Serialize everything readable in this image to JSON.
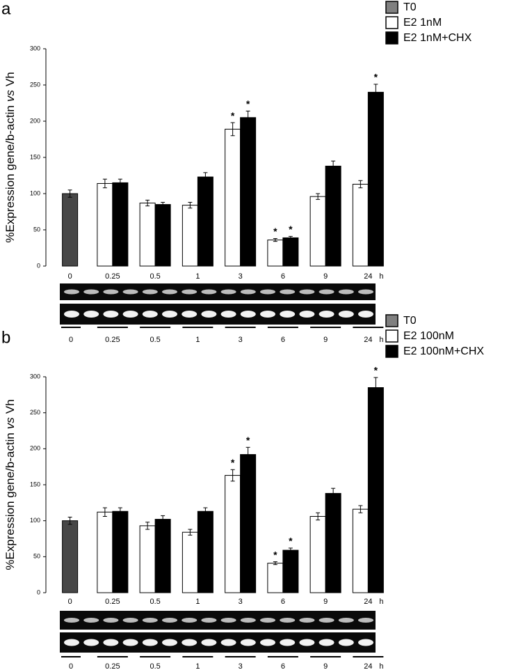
{
  "chart_data": [
    {
      "type": "bar",
      "panel": "a",
      "ylabel": [
        "%Expression gene/b-actin",
        "vs",
        "Vh"
      ],
      "categories": [
        "0",
        "0.25",
        "0.5",
        "1",
        "3",
        "6",
        "9",
        "24"
      ],
      "x_unit": "h",
      "ylim": [
        0,
        300
      ],
      "yticks": [
        0,
        50,
        100,
        150,
        200,
        250,
        300
      ],
      "series": [
        {
          "name": "T0",
          "color": "#474747",
          "legend_color": "#808080",
          "values": [
            100,
            null,
            null,
            null,
            null,
            null,
            null,
            null
          ],
          "errors": [
            5,
            null,
            null,
            null,
            null,
            null,
            null,
            null
          ],
          "significance": [
            null,
            null,
            null,
            null,
            null,
            null,
            null,
            null
          ]
        },
        {
          "name": "E2 1nM",
          "color": "#ffffff",
          "values": [
            null,
            114,
            87,
            84,
            189,
            36,
            96,
            113
          ],
          "errors": [
            null,
            6,
            4,
            4,
            9,
            2,
            4,
            5
          ],
          "significance": [
            null,
            null,
            null,
            null,
            "*",
            "*",
            null,
            null
          ]
        },
        {
          "name": "E2 1nM+CHX",
          "color": "#000000",
          "values": [
            null,
            115,
            85,
            123,
            205,
            39,
            138,
            240
          ],
          "errors": [
            null,
            5,
            3,
            6,
            9,
            2,
            7,
            11
          ],
          "significance": [
            null,
            null,
            null,
            null,
            "*",
            "*",
            null,
            "*"
          ]
        }
      ]
    },
    {
      "type": "bar",
      "panel": "b",
      "ylabel": [
        "%Expression gene/b-actin",
        "vs",
        "Vh"
      ],
      "categories": [
        "0",
        "0.25",
        "0.5",
        "1",
        "3",
        "6",
        "9",
        "24"
      ],
      "x_unit": "h",
      "ylim": [
        0,
        300
      ],
      "yticks": [
        0,
        50,
        100,
        150,
        200,
        250,
        300
      ],
      "series": [
        {
          "name": "T0",
          "color": "#474747",
          "legend_color": "#808080",
          "values": [
            100,
            null,
            null,
            null,
            null,
            null,
            null,
            null
          ],
          "errors": [
            5,
            null,
            null,
            null,
            null,
            null,
            null,
            null
          ],
          "significance": [
            null,
            null,
            null,
            null,
            null,
            null,
            null,
            null
          ]
        },
        {
          "name": "E2 100nM",
          "color": "#ffffff",
          "values": [
            null,
            112,
            93,
            84,
            163,
            41,
            106,
            116
          ],
          "errors": [
            null,
            6,
            5,
            4,
            8,
            2,
            5,
            5
          ],
          "significance": [
            null,
            null,
            null,
            null,
            "*",
            "*",
            null,
            null
          ]
        },
        {
          "name": "E2 100nM+CHX",
          "color": "#000000",
          "values": [
            null,
            113,
            102,
            113,
            192,
            59,
            138,
            285
          ],
          "errors": [
            null,
            5,
            5,
            5,
            10,
            3,
            7,
            14
          ],
          "significance": [
            null,
            null,
            null,
            null,
            "*",
            "*",
            null,
            "*"
          ]
        }
      ]
    }
  ]
}
